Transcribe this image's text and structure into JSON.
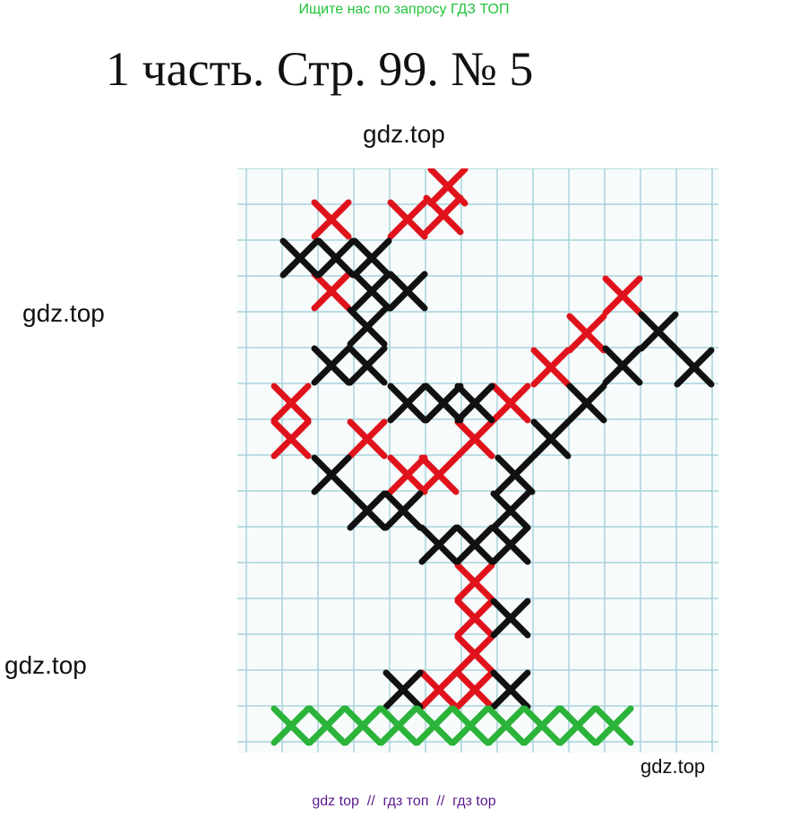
{
  "header": {
    "note": "Ищите нас по запросу ГДЗ ТОП",
    "title": "1 часть. Стр. 99. № 5"
  },
  "watermarks": [
    "gdz.top",
    "gdz.top",
    "gdz.top",
    "gdz.top"
  ],
  "footer": {
    "text": "gdz top  //  гдз топ  //  гдз top"
  }
}
